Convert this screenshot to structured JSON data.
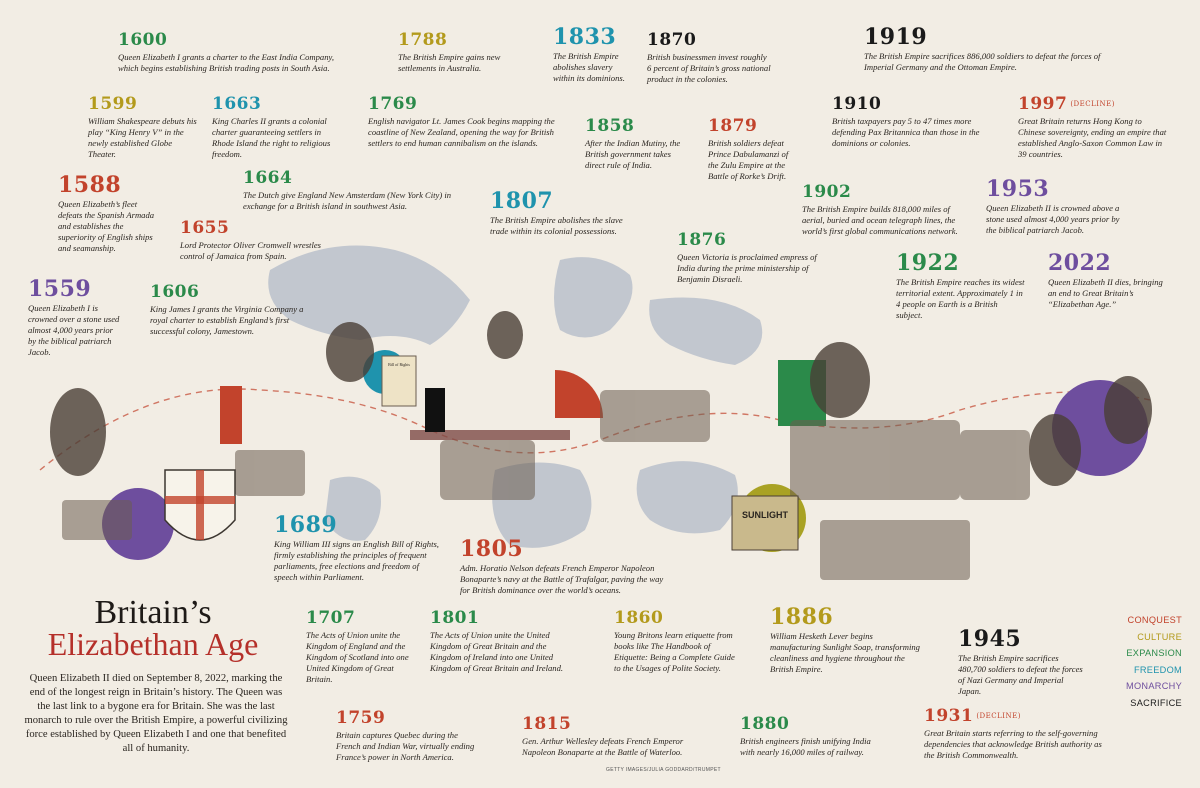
{
  "title": {
    "line1": "Britain’s",
    "line2": "Elizabethan Age"
  },
  "intro": "Queen Elizabeth II died on September 8, 2022, marking the end of the longest reign in Britain’s history. The Queen was the last link to a bygone era for Britain. She was the last monarch to rule over the British Empire, a powerful civilizing force established by Queen Elizabeth I and one that benefited all of humanity.",
  "credit": "GETTY IMAGES/JULIA GODDARD/TRUMPET",
  "legend": [
    {
      "label": "CONQUEST",
      "color": "#c2432c"
    },
    {
      "label": "CULTURE",
      "color": "#b39a1c"
    },
    {
      "label": "EXPANSION",
      "color": "#2b8a4a"
    },
    {
      "label": "FREEDOM",
      "color": "#1f93ad"
    },
    {
      "label": "MONARCHY",
      "color": "#6e4e9e"
    },
    {
      "label": "SACRIFICE",
      "color": "#1a1a1a"
    }
  ],
  "decline_tag": "(DECLINE)",
  "events": {
    "e1600": {
      "year": "1600",
      "text": "Queen Elizabeth I grants a charter to the East India Company, which begins establishing British trading posts in South Asia."
    },
    "e1788": {
      "year": "1788",
      "text": "The British Empire gains new settlements in Australia."
    },
    "e1833": {
      "year": "1833",
      "text": "The British Empire abolishes slavery within its dominions."
    },
    "e1870": {
      "year": "1870",
      "text": "British businessmen invest roughly 6 percent of Britain’s gross national product in the colonies."
    },
    "e1919": {
      "year": "1919",
      "text": "The British Empire sacrifices 886,000 soldiers to defeat the forces of Imperial Germany and the Ottoman Empire."
    },
    "e1599": {
      "year": "1599",
      "text": "William Shakespeare debuts his play “King Henry V” in the newly established Globe Theater."
    },
    "e1663": {
      "year": "1663",
      "text": "King Charles II grants a colonial charter guaranteeing settlers in Rhode Island the right to religious freedom."
    },
    "e1769": {
      "year": "1769",
      "text": "English navigator Lt. James Cook begins mapping the coastline of New Zealand, opening the way for British settlers to end human cannibalism on the islands."
    },
    "e1910": {
      "year": "1910",
      "text": "British taxpayers pay 5 to 47 times more defending Pax Britannica than those in the dominions or colonies."
    },
    "e1997": {
      "year": "1997",
      "text": "Great Britain returns Hong Kong to Chinese sovereignty, ending an empire that established Anglo-Saxon Common Law in 39 countries."
    },
    "e1858": {
      "year": "1858",
      "text": "After the Indian Mutiny, the British government takes direct rule of India."
    },
    "e1879": {
      "year": "1879",
      "text": "British soldiers defeat Prince Dabulamanzi of the Zulu Empire at the Battle of Rorke’s Drift."
    },
    "e1588": {
      "year": "1588",
      "text": "Queen Elizabeth’s fleet defeats the Spanish Armada and establishes the superiority of English ships and seamanship."
    },
    "e1664": {
      "year": "1664",
      "text": "The Dutch give England New Amsterdam (New York City) in exchange for a British island in southwest Asia."
    },
    "e1807": {
      "year": "1807",
      "text": "The British Empire abolishes the slave trade within its colonial possessions."
    },
    "e1902": {
      "year": "1902",
      "text": "The British Empire builds 818,000 miles of aerial, buried and ocean telegraph lines, the world’s first global communications network."
    },
    "e1953": {
      "year": "1953",
      "text": "Queen Elizabeth II is crowned above a stone used almost 4,000 years prior by the biblical patriarch Jacob."
    },
    "e1655": {
      "year": "1655",
      "text": "Lord Protector Oliver Cromwell wrestles control of Jamaica from Spain."
    },
    "e1876": {
      "year": "1876",
      "text": "Queen Victoria is proclaimed empress of India during the prime ministership of Benjamin Disraeli."
    },
    "e1922": {
      "year": "1922",
      "text": "The British Empire reaches its widest territorial extent. Approximately 1 in 4 people on Earth is a British subject."
    },
    "e2022": {
      "year": "2022",
      "text": "Queen Elizabeth II dies, bringing an end to Great Britain’s “Elizabethan Age.”"
    },
    "e1559": {
      "year": "1559",
      "text": "Queen Elizabeth I is crowned over a stone used almost 4,000 years prior by the biblical patriarch Jacob."
    },
    "e1606": {
      "year": "1606",
      "text": "King James I grants the Virginia Company a royal charter to establish England’s first successful colony, Jamestown."
    },
    "e1689": {
      "year": "1689",
      "text": "King William III signs an English Bill of Rights, firmly establishing the principles of frequent parliaments, free elections and freedom of speech within Parliament."
    },
    "e1805": {
      "year": "1805",
      "text": "Adm. Horatio Nelson defeats French Emperor Napoleon Bonaparte’s navy at the Battle of Trafalgar, paving the way for British dominance over the world’s oceans."
    },
    "e1707": {
      "year": "1707",
      "text": "The Acts of Union unite the Kingdom of England and the Kingdom of Scotland into one United Kingdom of Great Britain."
    },
    "e1801": {
      "year": "1801",
      "text": "The Acts of Union unite the United Kingdom of Great Britain and the Kingdom of Ireland into one United Kingdom of Great Britain and Ireland."
    },
    "e1860": {
      "year": "1860",
      "text": "Young Britons learn etiquette from books like The Handbook of Etiquette: Being a Complete Guide to the Usages of Polite Society."
    },
    "e1886": {
      "year": "1886",
      "text": "William Hesketh Lever begins manufacturing Sunlight Soap, transforming cleanliness and hygiene throughout the British Empire."
    },
    "e1945": {
      "year": "1945",
      "text": "The British Empire sacrifices 480,700 soldiers to defeat the forces of Nazi Germany and Imperial Japan."
    },
    "e1759": {
      "year": "1759",
      "text": "Britain captures Quebec during the French and Indian War, virtually ending France’s power in North America."
    },
    "e1815": {
      "year": "1815",
      "text": "Gen. Arthur Wellesley defeats French Emperor Napoleon Bonaparte at the Battle of Waterloo."
    },
    "e1880": {
      "year": "1880",
      "text": "British engineers finish unifying India with nearly 16,000 miles of railway."
    },
    "e1931": {
      "year": "1931",
      "text": "Great Britain starts referring to the self-governing dependencies that acknowledge British authority as the British Commonwealth."
    }
  },
  "collage": {
    "soap_label": "SUNLIGHT",
    "scroll_label": "Bill of Rights"
  }
}
